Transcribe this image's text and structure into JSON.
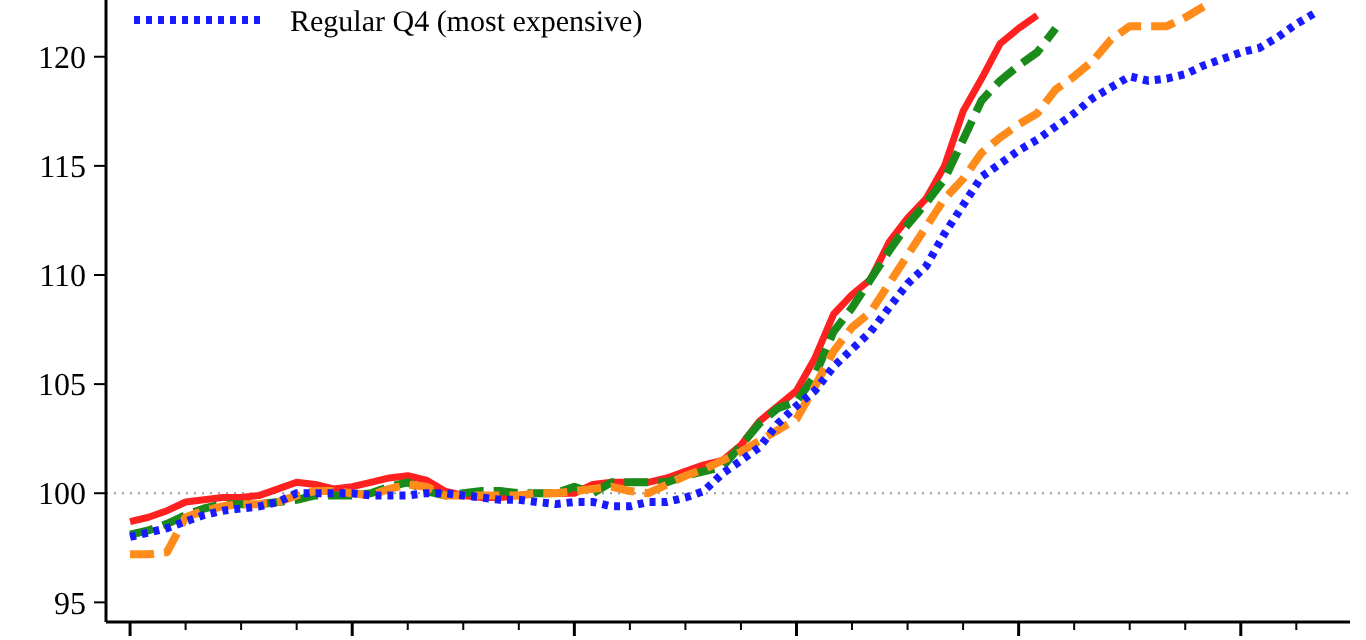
{
  "chart_data": {
    "type": "line",
    "categories": [
      null,
      null,
      null,
      null,
      null,
      null,
      null,
      null,
      null,
      null,
      null,
      null,
      null,
      null,
      null,
      null,
      null,
      null,
      null,
      null,
      null,
      null,
      null,
      null,
      null,
      null,
      null,
      null,
      null,
      null,
      null,
      null,
      null,
      null,
      null,
      null,
      null,
      null,
      null,
      null,
      null,
      null,
      null,
      null,
      null,
      null,
      null,
      null,
      null,
      null,
      null,
      null,
      null,
      null,
      null,
      null,
      null,
      null,
      null,
      null,
      null,
      null,
      null,
      null,
      null
    ],
    "series": [
      {
        "color": "#ff2020",
        "line_style": "solid",
        "values": [
          98.7,
          98.9,
          99.2,
          99.6,
          99.7,
          99.8,
          99.8,
          99.9,
          100.2,
          100.5,
          100.4,
          100.2,
          100.3,
          100.5,
          100.7,
          100.8,
          100.6,
          100.1,
          99.9,
          99.8,
          99.8,
          99.9,
          100,
          100,
          100,
          100.4,
          100.5,
          100.5,
          100.5,
          100.7,
          101.0,
          101.3,
          101.5,
          102.2,
          103.3,
          104.0,
          104.7,
          106.2,
          108.2,
          109.1,
          109.8,
          111.5,
          112.6,
          113.5,
          115.0,
          117.5,
          119.0,
          120.6,
          121.3,
          121.9,
          null,
          null,
          null,
          null,
          null,
          null,
          null,
          null,
          null,
          null,
          null,
          null,
          null,
          null,
          null
        ]
      },
      {
        "color": "#1a8a1a",
        "line_style": "dashed",
        "values": [
          98.1,
          98.3,
          98.6,
          99.0,
          99.3,
          99.5,
          99.5,
          99.5,
          99.6,
          99.7,
          99.9,
          99.9,
          99.9,
          100.0,
          100.3,
          100.5,
          100.1,
          99.9,
          100.0,
          100.1,
          100.1,
          100.0,
          100.0,
          100.0,
          100.3,
          100.0,
          100.5,
          100.5,
          100.5,
          100.5,
          100.8,
          101.0,
          101.2,
          102.2,
          103.2,
          103.9,
          104.2,
          105.4,
          107.4,
          108.5,
          109.8,
          111.1,
          112.3,
          113.3,
          114.4,
          116.2,
          118.0,
          118.9,
          119.6,
          120.2,
          121.3,
          null,
          null,
          null,
          null,
          null,
          null,
          null,
          null,
          null,
          null,
          null,
          null,
          null,
          null
        ]
      },
      {
        "color": "#ff8c1a",
        "line_style": "dashed",
        "values": [
          97.2,
          97.2,
          97.3,
          98.9,
          99.2,
          99.4,
          99.5,
          99.5,
          99.6,
          99.9,
          100.1,
          100.1,
          100.0,
          99.9,
          100.2,
          100.4,
          100.3,
          99.9,
          99.9,
          99.9,
          99.9,
          99.9,
          100.0,
          100.0,
          100.1,
          100.2,
          100.3,
          100.1,
          100.0,
          100.4,
          100.8,
          101.1,
          101.5,
          101.9,
          102.4,
          102.9,
          103.4,
          104.9,
          106.5,
          107.6,
          108.3,
          109.6,
          110.9,
          112.2,
          113.5,
          114.4,
          115.6,
          116.3,
          116.9,
          117.4,
          118.5,
          119.1,
          119.8,
          120.8,
          121.4,
          121.4,
          121.4,
          121.8,
          122.3,
          null,
          null,
          null,
          null,
          null,
          null
        ]
      },
      {
        "name": "Regular Q4 (most expensive)",
        "color": "#1a1aff",
        "line_style": "dotted",
        "values": [
          98.0,
          98.2,
          98.4,
          98.7,
          99.0,
          99.2,
          99.3,
          99.4,
          99.6,
          100.0,
          100.0,
          100.0,
          100.0,
          99.9,
          99.9,
          99.9,
          100.0,
          100.0,
          99.9,
          99.8,
          99.7,
          99.7,
          99.6,
          99.5,
          99.6,
          99.6,
          99.4,
          99.4,
          99.6,
          99.6,
          99.8,
          100.1,
          100.9,
          101.5,
          102.1,
          103.2,
          104.0,
          104.7,
          105.8,
          106.6,
          107.4,
          108.5,
          109.6,
          110.4,
          111.9,
          113.2,
          114.5,
          115.1,
          115.7,
          116.2,
          116.8,
          117.4,
          118.1,
          118.6,
          119.1,
          118.9,
          119.0,
          119.2,
          119.6,
          119.9,
          120.2,
          120.4,
          120.9,
          121.5,
          122.0
        ]
      }
    ],
    "ylim": [
      94.1,
      122.6
    ],
    "yticks": [
      95,
      100,
      105,
      110,
      115,
      120
    ],
    "grid": false,
    "legend": "top left",
    "marker": "none",
    "ref_lines": [
      {
        "axis": "y",
        "value": 100,
        "color": "#999999",
        "line_style": "dotted"
      }
    ]
  }
}
